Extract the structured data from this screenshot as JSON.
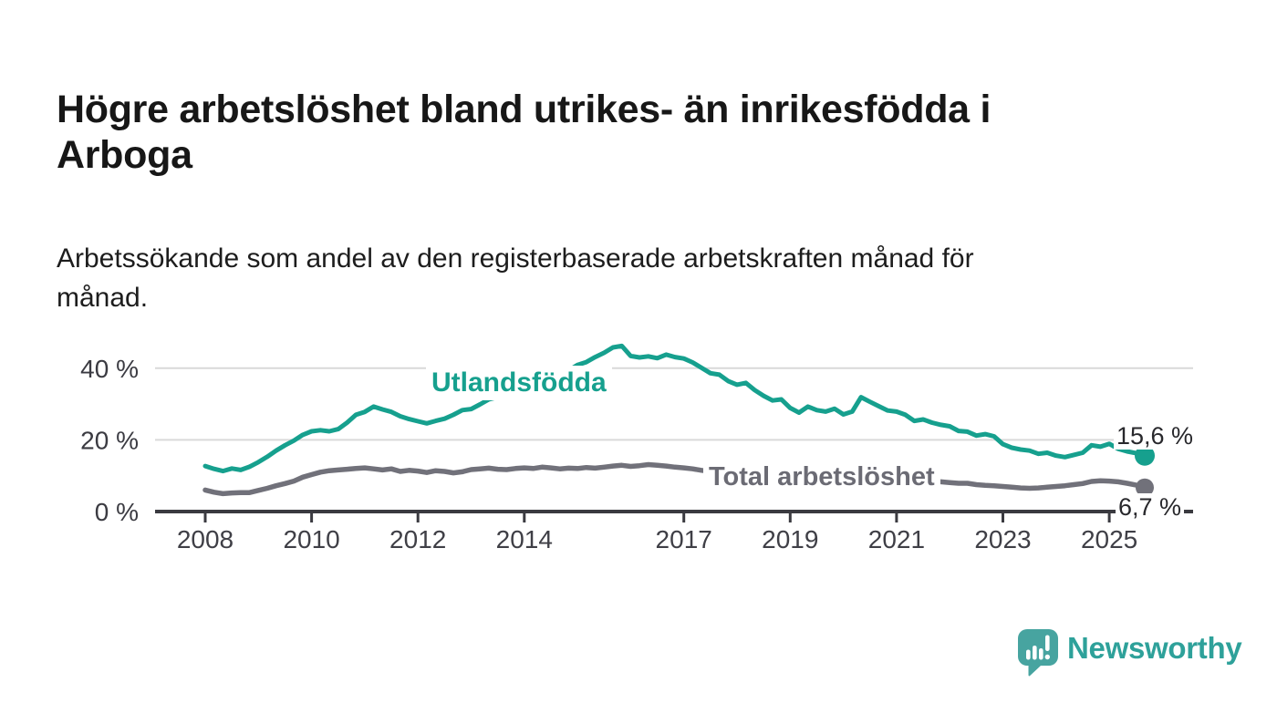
{
  "title_lines": [
    "Högre arbetslöshet bland utrikes- än inrikesfödda i",
    "Arboga"
  ],
  "subtitle_lines": [
    "Arbetssökande som andel av den registerbaserade arbetskraften månad för",
    "månad."
  ],
  "colors": {
    "accent_teal": "#16a08e",
    "series_gray": "#71717a",
    "grid": "#d9d9d9",
    "axis": "#3a3a40",
    "tick_label": "#3f3f46",
    "value_label": "#28282c",
    "logo_teal": "#2ea19a",
    "logo_icon_teal": "#47a4a0"
  },
  "logo": {
    "name": "Newsworthy"
  },
  "chart_data": {
    "type": "line",
    "unit": "%",
    "x_start": 2008,
    "x_step_years": 0.166667,
    "x_axis": {
      "ticks": [
        {
          "value": 2008,
          "label": "2008"
        },
        {
          "value": 2010,
          "label": "2010"
        },
        {
          "value": 2012,
          "label": "2012"
        },
        {
          "value": 2014,
          "label": "2014"
        },
        {
          "value": 2017,
          "label": "2017"
        },
        {
          "value": 2019,
          "label": "2019"
        },
        {
          "value": 2021,
          "label": "2021"
        },
        {
          "value": 2023,
          "label": "2023"
        },
        {
          "value": 2025,
          "label": "2025"
        }
      ]
    },
    "y_axis": {
      "ticks": [
        {
          "value": 40,
          "label": "40 %"
        },
        {
          "value": 20,
          "label": "20 %"
        },
        {
          "value": 0,
          "label": "0 %"
        }
      ],
      "ylim": [
        0,
        48
      ]
    },
    "grid": true,
    "series": [
      {
        "name": "Utlandsfödda",
        "color": "#16a08e",
        "end_label": "15,6 %",
        "end_value": 15.6,
        "values": [
          12.7,
          11.9,
          11.3,
          12.0,
          11.6,
          12.5,
          13.8,
          15.3,
          17.0,
          18.5,
          19.8,
          21.4,
          22.4,
          22.7,
          22.4,
          23.0,
          24.8,
          27.0,
          27.8,
          29.3,
          28.5,
          27.8,
          26.6,
          25.8,
          25.2,
          24.6,
          25.3,
          25.9,
          27.0,
          28.3,
          28.6,
          29.9,
          31.3,
          31.9,
          32.8,
          33.8,
          34.7,
          35.5,
          36.3,
          37.3,
          38.3,
          39.4,
          40.9,
          41.7,
          43.1,
          44.3,
          45.8,
          46.2,
          43.4,
          43.0,
          43.3,
          42.8,
          43.8,
          43.1,
          42.7,
          41.6,
          40.1,
          38.6,
          38.2,
          36.4,
          35.4,
          35.9,
          33.9,
          32.3,
          31.0,
          31.3,
          28.9,
          27.6,
          29.3,
          28.3,
          27.9,
          28.7,
          27.1,
          27.9,
          31.9,
          30.6,
          29.4,
          28.2,
          27.9,
          27.0,
          25.3,
          25.7,
          24.8,
          24.2,
          23.8,
          22.5,
          22.3,
          21.2,
          21.6,
          21.0,
          18.8,
          17.8,
          17.3,
          17.0,
          16.1,
          16.4,
          15.6,
          15.2,
          15.8,
          16.4,
          18.5,
          18.1,
          18.9,
          17.5,
          16.8,
          16.3,
          15.6
        ]
      },
      {
        "name": "Total arbetslöshet",
        "color": "#71717a",
        "end_label": "6,7 %",
        "end_value": 6.7,
        "values": [
          6.0,
          5.4,
          5.0,
          5.2,
          5.3,
          5.3,
          5.9,
          6.5,
          7.2,
          7.8,
          8.5,
          9.6,
          10.3,
          11.0,
          11.4,
          11.6,
          11.8,
          12.0,
          12.2,
          11.9,
          11.6,
          11.9,
          11.2,
          11.5,
          11.3,
          10.9,
          11.4,
          11.2,
          10.8,
          11.1,
          11.7,
          11.9,
          12.1,
          11.8,
          11.7,
          12.0,
          12.2,
          12.0,
          12.4,
          12.2,
          11.9,
          12.1,
          12.0,
          12.3,
          12.1,
          12.4,
          12.7,
          12.9,
          12.6,
          12.8,
          13.1,
          12.9,
          12.7,
          12.4,
          12.2,
          11.9,
          11.5,
          11.2,
          10.9,
          10.7,
          10.5,
          10.3,
          10.0,
          9.7,
          9.5,
          9.3,
          9.2,
          9.0,
          8.9,
          9.0,
          9.2,
          9.4,
          9.6,
          10.0,
          10.4,
          10.2,
          10.0,
          9.8,
          9.6,
          9.3,
          9.0,
          8.7,
          8.5,
          8.3,
          8.1,
          7.9,
          7.9,
          7.5,
          7.3,
          7.2,
          7.0,
          6.8,
          6.6,
          6.5,
          6.6,
          6.8,
          7.0,
          7.2,
          7.5,
          7.8,
          8.4,
          8.6,
          8.5,
          8.3,
          7.9,
          7.4,
          6.7
        ]
      }
    ]
  }
}
